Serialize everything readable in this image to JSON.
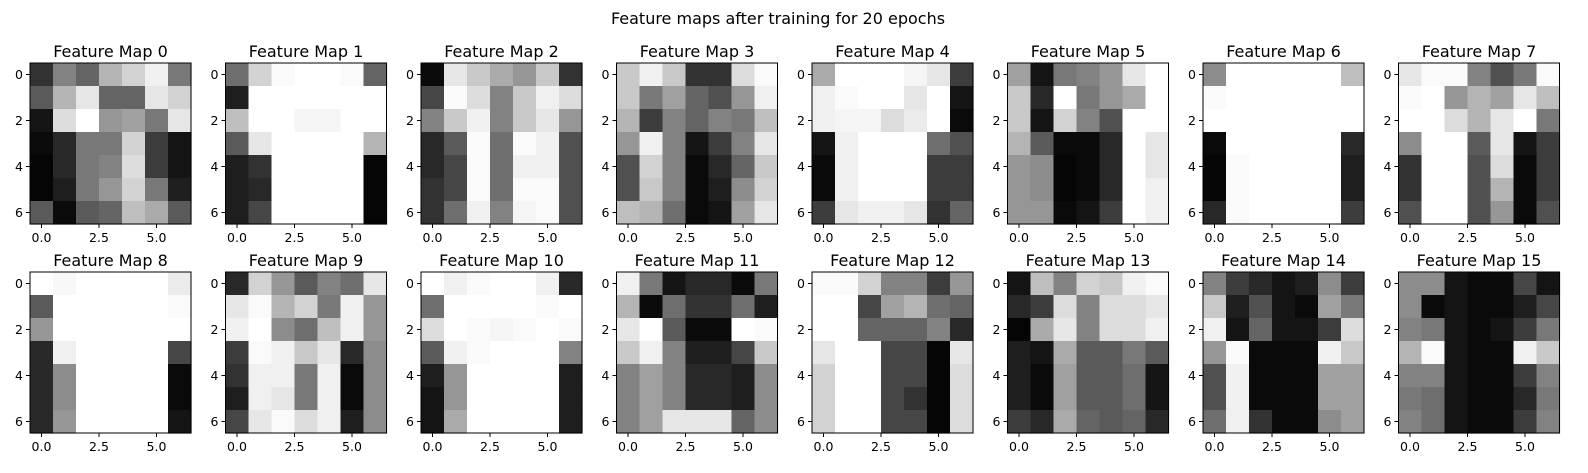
{
  "figure": {
    "title": "Feature maps after training for 20 epochs"
  },
  "colors": {
    "background": "#ffffff",
    "frame": "#000000",
    "text": "#000000"
  },
  "chart_data": {
    "type": "heatmap",
    "colormap": "gray",
    "value_range": [
      0,
      255
    ],
    "grid_layout": {
      "rows": 2,
      "cols": 8
    },
    "x_ticks": [
      "0.0",
      "2.5",
      "5.0"
    ],
    "y_ticks": [
      "0",
      "2",
      "4",
      "6"
    ],
    "maps": [
      {
        "title": "Feature Map 0",
        "values": [
          [
            50,
            130,
            100,
            180,
            210,
            240,
            120
          ],
          [
            90,
            180,
            230,
            100,
            100,
            230,
            210
          ],
          [
            20,
            220,
            255,
            150,
            160,
            120,
            230
          ],
          [
            10,
            40,
            120,
            120,
            210,
            60,
            20
          ],
          [
            5,
            40,
            120,
            130,
            220,
            60,
            20
          ],
          [
            5,
            30,
            120,
            150,
            210,
            120,
            30
          ],
          [
            90,
            10,
            90,
            100,
            190,
            170,
            90
          ]
        ]
      },
      {
        "title": "Feature Map 1",
        "values": [
          [
            110,
            210,
            250,
            255,
            255,
            250,
            100
          ],
          [
            30,
            255,
            255,
            255,
            255,
            255,
            255
          ],
          [
            190,
            255,
            255,
            245,
            245,
            255,
            255
          ],
          [
            90,
            230,
            255,
            255,
            255,
            255,
            180
          ],
          [
            30,
            50,
            255,
            255,
            255,
            255,
            5
          ],
          [
            30,
            40,
            255,
            255,
            255,
            255,
            5
          ],
          [
            30,
            70,
            255,
            255,
            255,
            255,
            5
          ]
        ]
      },
      {
        "title": "Feature Map 2",
        "values": [
          [
            10,
            230,
            200,
            170,
            150,
            200,
            50
          ],
          [
            70,
            250,
            220,
            130,
            200,
            240,
            220
          ],
          [
            130,
            200,
            240,
            130,
            200,
            230,
            150
          ],
          [
            40,
            90,
            250,
            110,
            250,
            240,
            80
          ],
          [
            40,
            70,
            250,
            110,
            240,
            240,
            80
          ],
          [
            50,
            70,
            250,
            110,
            250,
            250,
            80
          ],
          [
            50,
            110,
            240,
            130,
            245,
            250,
            80
          ]
        ]
      },
      {
        "title": "Feature Map 3",
        "values": [
          [
            200,
            240,
            200,
            50,
            50,
            220,
            250
          ],
          [
            200,
            120,
            160,
            100,
            80,
            150,
            240
          ],
          [
            180,
            60,
            130,
            100,
            130,
            120,
            190
          ],
          [
            150,
            240,
            130,
            20,
            60,
            130,
            230
          ],
          [
            80,
            210,
            130,
            10,
            40,
            100,
            200
          ],
          [
            80,
            200,
            130,
            10,
            30,
            140,
            210
          ],
          [
            190,
            180,
            110,
            10,
            20,
            160,
            230
          ]
        ]
      },
      {
        "title": "Feature Map 4",
        "values": [
          [
            170,
            255,
            255,
            255,
            245,
            230,
            60
          ],
          [
            240,
            250,
            255,
            255,
            230,
            255,
            20
          ],
          [
            240,
            245,
            245,
            220,
            235,
            255,
            10
          ],
          [
            20,
            240,
            255,
            255,
            255,
            110,
            80
          ],
          [
            10,
            240,
            255,
            255,
            255,
            60,
            60
          ],
          [
            10,
            240,
            255,
            255,
            255,
            60,
            60
          ],
          [
            60,
            230,
            240,
            240,
            230,
            50,
            100
          ]
        ]
      },
      {
        "title": "Feature Map 5",
        "values": [
          [
            160,
            20,
            120,
            130,
            150,
            230,
            255
          ],
          [
            200,
            40,
            255,
            120,
            150,
            170,
            255
          ],
          [
            200,
            20,
            210,
            130,
            80,
            255,
            255
          ],
          [
            180,
            90,
            10,
            10,
            40,
            255,
            230
          ],
          [
            150,
            140,
            5,
            10,
            40,
            255,
            230
          ],
          [
            150,
            140,
            5,
            10,
            40,
            255,
            240
          ],
          [
            150,
            150,
            10,
            20,
            60,
            255,
            240
          ]
        ]
      },
      {
        "title": "Feature Map 6",
        "values": [
          [
            140,
            255,
            255,
            255,
            255,
            255,
            190
          ],
          [
            250,
            255,
            255,
            255,
            255,
            255,
            255
          ],
          [
            255,
            255,
            255,
            255,
            255,
            255,
            255
          ],
          [
            10,
            255,
            255,
            255,
            255,
            255,
            40
          ],
          [
            5,
            250,
            255,
            255,
            255,
            255,
            30
          ],
          [
            5,
            250,
            255,
            255,
            255,
            255,
            30
          ],
          [
            40,
            250,
            255,
            255,
            255,
            255,
            60
          ]
        ]
      },
      {
        "title": "Feature Map 7",
        "values": [
          [
            230,
            250,
            250,
            130,
            80,
            120,
            250
          ],
          [
            250,
            255,
            150,
            180,
            160,
            230,
            190
          ],
          [
            255,
            255,
            220,
            180,
            230,
            255,
            120
          ],
          [
            140,
            255,
            255,
            90,
            230,
            20,
            60
          ],
          [
            50,
            255,
            255,
            80,
            220,
            10,
            60
          ],
          [
            50,
            255,
            255,
            80,
            180,
            10,
            60
          ],
          [
            80,
            255,
            255,
            80,
            150,
            10,
            80
          ]
        ]
      },
      {
        "title": "Feature Map 8",
        "values": [
          [
            255,
            248,
            255,
            255,
            255,
            255,
            235
          ],
          [
            90,
            255,
            255,
            255,
            255,
            255,
            250
          ],
          [
            150,
            255,
            255,
            255,
            255,
            255,
            255
          ],
          [
            40,
            240,
            255,
            255,
            255,
            255,
            70
          ],
          [
            40,
            140,
            255,
            255,
            255,
            255,
            10
          ],
          [
            40,
            140,
            255,
            255,
            255,
            255,
            10
          ],
          [
            40,
            150,
            255,
            255,
            255,
            255,
            20
          ]
        ]
      },
      {
        "title": "Feature Map 9",
        "values": [
          [
            40,
            210,
            150,
            90,
            130,
            110,
            230
          ],
          [
            230,
            250,
            180,
            210,
            120,
            240,
            150
          ],
          [
            240,
            255,
            140,
            110,
            190,
            240,
            150
          ],
          [
            60,
            250,
            240,
            200,
            230,
            40,
            140
          ],
          [
            50,
            240,
            240,
            120,
            240,
            10,
            140
          ],
          [
            30,
            240,
            230,
            120,
            240,
            10,
            140
          ],
          [
            70,
            230,
            250,
            220,
            240,
            30,
            140
          ]
        ]
      },
      {
        "title": "Feature Map 10",
        "values": [
          [
            255,
            240,
            250,
            255,
            255,
            240,
            40
          ],
          [
            110,
            255,
            255,
            255,
            255,
            250,
            255
          ],
          [
            220,
            255,
            250,
            245,
            250,
            255,
            250
          ],
          [
            90,
            240,
            250,
            255,
            255,
            255,
            130
          ],
          [
            30,
            150,
            255,
            255,
            255,
            255,
            30
          ],
          [
            20,
            150,
            255,
            255,
            255,
            255,
            30
          ],
          [
            20,
            170,
            255,
            255,
            255,
            255,
            30
          ]
        ]
      },
      {
        "title": "Feature Map 11",
        "values": [
          [
            240,
            120,
            20,
            40,
            40,
            10,
            120
          ],
          [
            180,
            10,
            110,
            50,
            50,
            110,
            30
          ],
          [
            230,
            255,
            90,
            10,
            10,
            255,
            250
          ],
          [
            200,
            240,
            130,
            30,
            30,
            70,
            200
          ],
          [
            130,
            160,
            130,
            40,
            40,
            30,
            140
          ],
          [
            130,
            160,
            130,
            40,
            40,
            30,
            140
          ],
          [
            130,
            160,
            230,
            230,
            230,
            100,
            140
          ]
        ]
      },
      {
        "title": "Feature Map 12",
        "values": [
          [
            250,
            250,
            210,
            130,
            130,
            60,
            150
          ],
          [
            255,
            255,
            70,
            160,
            180,
            110,
            100
          ],
          [
            255,
            255,
            100,
            100,
            100,
            130,
            40
          ],
          [
            230,
            255,
            255,
            70,
            70,
            5,
            230
          ],
          [
            210,
            255,
            255,
            70,
            70,
            5,
            220
          ],
          [
            210,
            255,
            255,
            70,
            50,
            5,
            220
          ],
          [
            210,
            255,
            255,
            70,
            70,
            5,
            220
          ]
        ]
      },
      {
        "title": "Feature Map 13",
        "values": [
          [
            20,
            190,
            130,
            210,
            200,
            240,
            250
          ],
          [
            40,
            60,
            220,
            130,
            220,
            220,
            230
          ],
          [
            5,
            170,
            230,
            130,
            220,
            220,
            240
          ],
          [
            30,
            20,
            170,
            90,
            90,
            120,
            90
          ],
          [
            30,
            10,
            160,
            90,
            90,
            110,
            20
          ],
          [
            30,
            10,
            160,
            90,
            90,
            110,
            20
          ],
          [
            60,
            40,
            170,
            100,
            90,
            100,
            40
          ]
        ]
      },
      {
        "title": "Feature Map 14",
        "values": [
          [
            130,
            60,
            40,
            20,
            30,
            140,
            60
          ],
          [
            200,
            30,
            80,
            20,
            10,
            160,
            120
          ],
          [
            240,
            20,
            100,
            20,
            20,
            60,
            220
          ],
          [
            150,
            250,
            10,
            10,
            10,
            240,
            200
          ],
          [
            80,
            240,
            10,
            10,
            10,
            160,
            160
          ],
          [
            80,
            240,
            10,
            10,
            10,
            160,
            160
          ],
          [
            110,
            240,
            50,
            10,
            10,
            140,
            160
          ]
        ]
      },
      {
        "title": "Feature Map 15",
        "values": [
          [
            140,
            140,
            20,
            10,
            10,
            70,
            20
          ],
          [
            140,
            10,
            20,
            10,
            10,
            30,
            70
          ],
          [
            130,
            120,
            20,
            10,
            20,
            60,
            120
          ],
          [
            180,
            250,
            20,
            10,
            10,
            240,
            200
          ],
          [
            130,
            130,
            20,
            10,
            10,
            60,
            130
          ],
          [
            120,
            110,
            20,
            10,
            10,
            40,
            120
          ],
          [
            130,
            110,
            20,
            10,
            10,
            60,
            130
          ]
        ]
      }
    ]
  }
}
